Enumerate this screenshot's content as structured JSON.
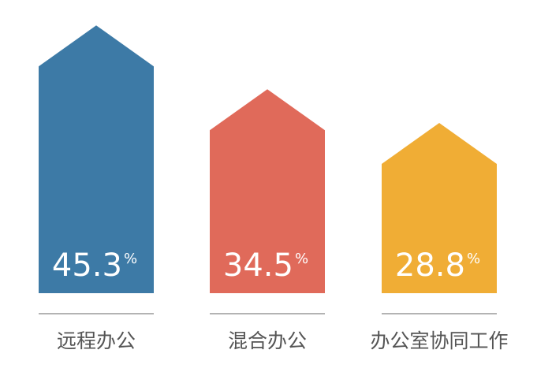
{
  "chart_data": {
    "type": "bar",
    "categories": [
      "远程办公",
      "混合办公",
      "办公室协同工作"
    ],
    "values": [
      45.3,
      34.5,
      28.8
    ],
    "value_labels": [
      "45.3",
      "34.5",
      "28.8"
    ],
    "unit": "%",
    "colors": [
      "#3d7aa6",
      "#e06a5a",
      "#f0ad35"
    ],
    "bar_shape": "house-arrow",
    "title": "",
    "xlabel": "",
    "ylabel": "",
    "ylim": [
      0,
      50
    ],
    "grid": false,
    "legend": "none"
  }
}
